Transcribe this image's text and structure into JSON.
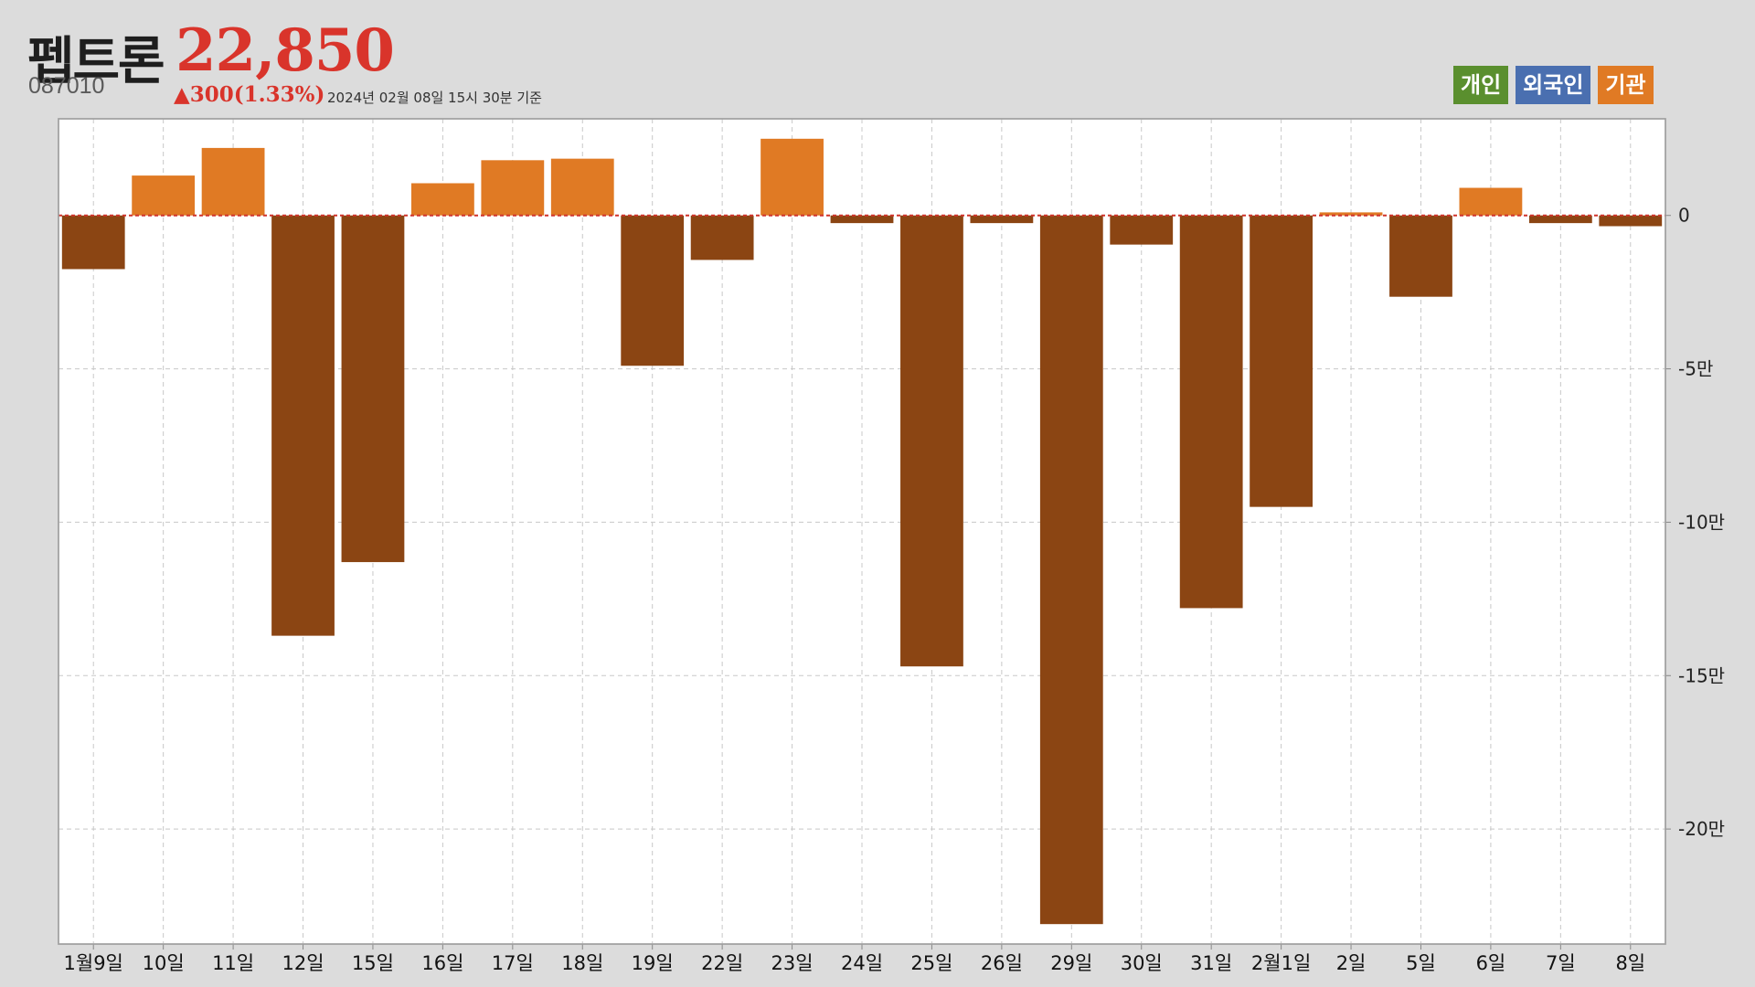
{
  "header": {
    "name": "펩트론",
    "price": "22,850",
    "code": "087010",
    "change": "▲300(1.33%)",
    "timestamp": "2024년 02월 08일 15시 30분 기준"
  },
  "legend": [
    {
      "label": "개인",
      "color": "#5a8f2e"
    },
    {
      "label": "외국인",
      "color": "#4a6fb0"
    },
    {
      "label": "기관",
      "color": "#e07a24"
    }
  ],
  "colors": {
    "positive": "#e07a24",
    "negative": "#8b4513",
    "zero_line": "#d0342b",
    "plot_bg": "#ffffff",
    "grid": "#c8c8c8"
  },
  "chart_data": {
    "type": "bar",
    "series_name": "기관",
    "categories": [
      "1월9일",
      "10일",
      "11일",
      "12일",
      "15일",
      "16일",
      "17일",
      "18일",
      "19일",
      "22일",
      "23일",
      "24일",
      "25일",
      "26일",
      "29일",
      "30일",
      "31일",
      "2월1일",
      "2일",
      "5일",
      "6일",
      "7일",
      "8일"
    ],
    "values": [
      -17500,
      13000,
      22000,
      -137000,
      -113000,
      10500,
      18000,
      18500,
      -49000,
      -14500,
      25000,
      -2500,
      -147000,
      -2500,
      -231000,
      -9500,
      -128000,
      -95000,
      1000,
      -26500,
      9000,
      -2500,
      -3500
    ],
    "ylim": [
      -237500,
      31500
    ],
    "yticks": [
      0,
      -50000,
      -100000,
      -150000,
      -200000
    ],
    "ytick_labels": [
      "0",
      "-5만",
      "-10만",
      "-15만",
      "-20만"
    ],
    "grid": true
  }
}
